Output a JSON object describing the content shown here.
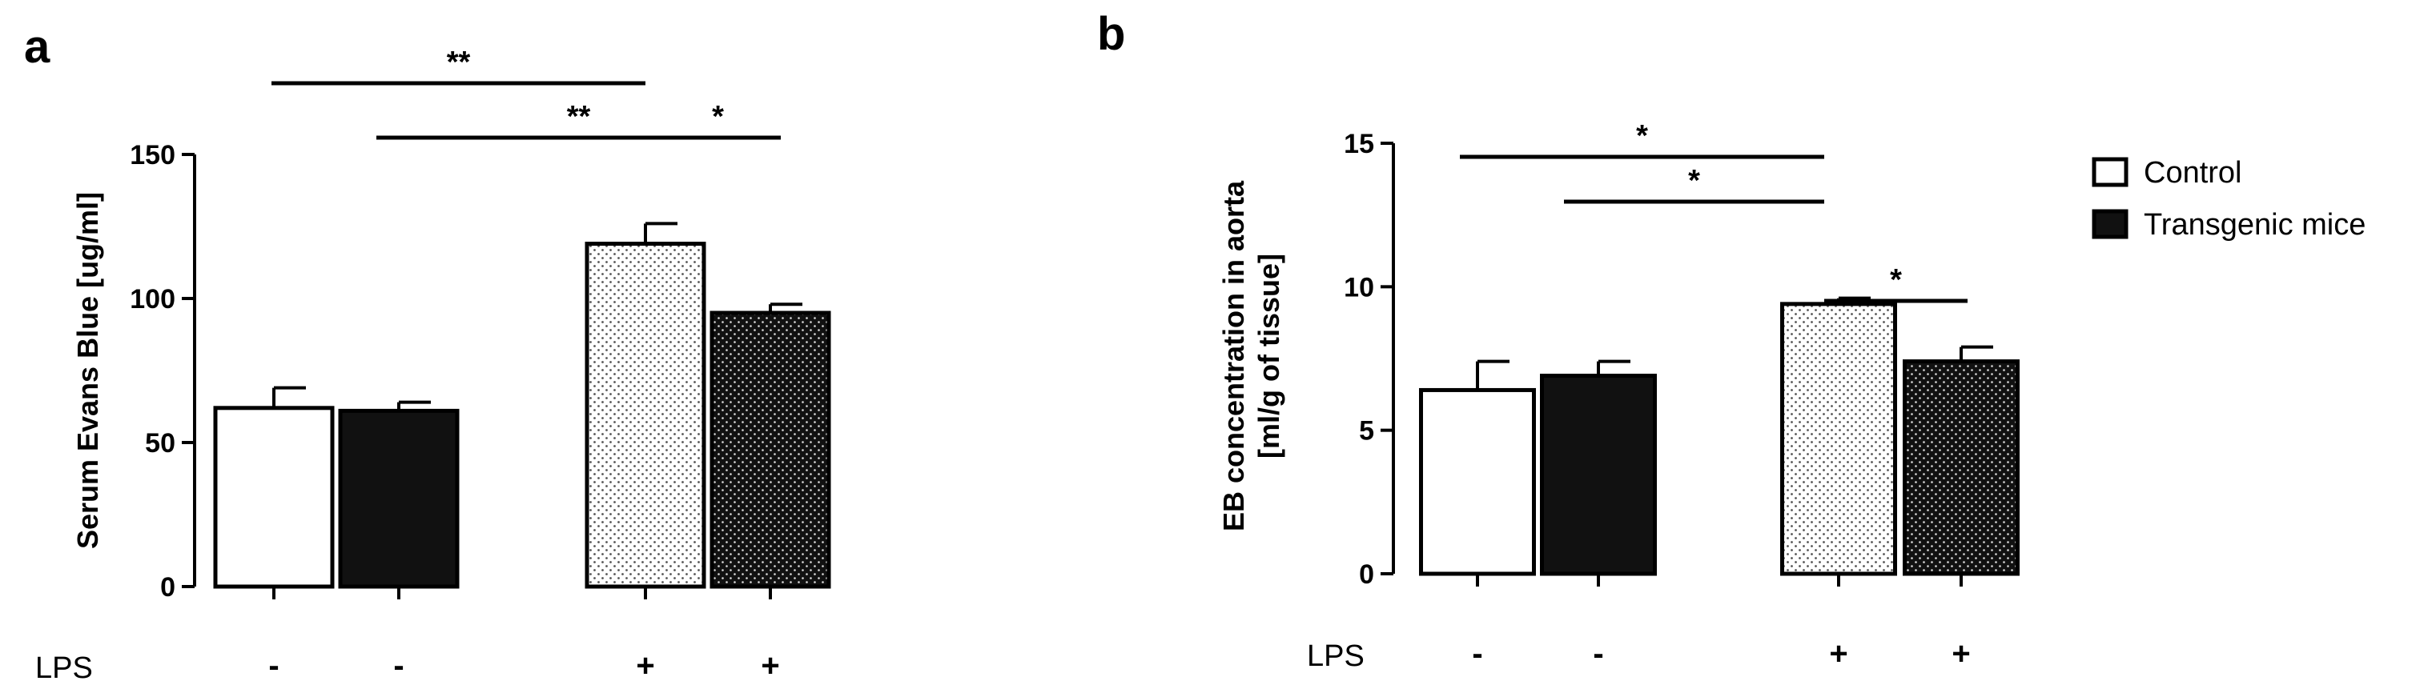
{
  "chart_data": [
    {
      "type": "bar",
      "panel": "a",
      "ylabel": "Serum Evans Blue [ug/ml]",
      "ylim": [
        0,
        150
      ],
      "yticks": [
        0,
        50,
        100,
        150
      ],
      "row_label": "LPS",
      "groups": [
        {
          "lps": "-",
          "series": "Control",
          "value": 62,
          "error": 7
        },
        {
          "lps": "-",
          "series": "Transgenic mice",
          "value": 61,
          "error": 3
        },
        {
          "lps": "+",
          "series": "Control",
          "value": 119,
          "error": 7
        },
        {
          "lps": "+",
          "series": "Transgenic mice",
          "value": 95,
          "error": 3
        }
      ],
      "significance": [
        {
          "from": 0,
          "to": 3,
          "label": "**",
          "level": 1
        },
        {
          "from": 0,
          "to": 2,
          "label": "**",
          "level": 0
        },
        {
          "from": 2,
          "to": 3,
          "label": "*",
          "level": 0
        }
      ]
    },
    {
      "type": "bar",
      "panel": "b",
      "ylabel": [
        "EB concentration in aorta",
        "[ml/g of tissue]"
      ],
      "ylim": [
        0,
        15
      ],
      "yticks": [
        0,
        5,
        10,
        15
      ],
      "row_label": "LPS",
      "groups": [
        {
          "lps": "-",
          "series": "Control",
          "value": 6.4,
          "error": 1.0
        },
        {
          "lps": "-",
          "series": "Transgenic mice",
          "value": 6.9,
          "error": 0.5
        },
        {
          "lps": "+",
          "series": "Control",
          "value": 9.4,
          "error": 0.2
        },
        {
          "lps": "+",
          "series": "Transgenic mice",
          "value": 7.4,
          "error": 0.5
        }
      ],
      "significance": [
        {
          "from": 0,
          "to": 2,
          "label": "*",
          "level": 2
        },
        {
          "from": 1,
          "to": 2,
          "label": "*",
          "level": 1
        },
        {
          "from": 2,
          "to": 3,
          "label": "*",
          "level": 0
        }
      ]
    }
  ],
  "legend": {
    "position": "top-right of panel b",
    "entries": [
      {
        "label": "Control",
        "fill": "white"
      },
      {
        "label": "Transgenic mice",
        "fill": "black"
      }
    ]
  },
  "colors": {
    "control": "#ffffff",
    "transgenic": "#111111",
    "axis": "#000000"
  }
}
